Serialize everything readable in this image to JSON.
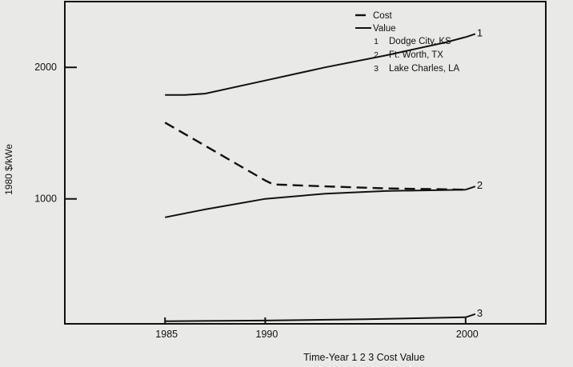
{
  "chart_data": {
    "type": "line",
    "title": "",
    "xlabel": "Time-Year   1   2   3   Cost Value",
    "ylabel": "1980 $/kWe",
    "xlim": [
      1980,
      2004
    ],
    "ylim": [
      50,
      2500
    ],
    "x_ticks": [
      1985,
      1990,
      2000
    ],
    "x_tick_labels": [
      "1985",
      "1990",
      "2000"
    ],
    "y_ticks": [
      1000,
      2000
    ],
    "y_tick_labels": [
      "1000",
      "2000"
    ],
    "grid": false,
    "legend": {
      "placement": "top-right",
      "style_entries": [
        {
          "label": "Cost",
          "style": "dashed"
        },
        {
          "label": "Value",
          "style": "solid"
        }
      ],
      "site_entries": [
        {
          "num": "1",
          "label": "Dodge City, KS"
        },
        {
          "num": "2",
          "label": "Ft. Worth, TX"
        },
        {
          "num": "3",
          "label": "Lake Charles, LA"
        }
      ]
    },
    "series": [
      {
        "site": "1",
        "style": "solid",
        "x": [
          1985,
          1986,
          1987,
          1990,
          1993,
          1996,
          1999,
          2000
        ],
        "y": [
          1790,
          1790,
          1800,
          1900,
          2000,
          2090,
          2190,
          2230
        ]
      },
      {
        "site": "2",
        "style": "solid",
        "x": [
          1985,
          1987,
          1990,
          1993,
          1996,
          2000
        ],
        "y": [
          860,
          920,
          1000,
          1040,
          1060,
          1070
        ]
      },
      {
        "site": "2",
        "style": "dashed",
        "x": [
          1985,
          1990,
          1990.4,
          1993,
          1996,
          2000
        ],
        "y": [
          1580,
          1140,
          1110,
          1095,
          1080,
          1070
        ]
      },
      {
        "site": "3",
        "style": "solid",
        "x": [
          1985,
          1990,
          1995,
          2000
        ],
        "y": [
          70,
          75,
          85,
          100
        ]
      }
    ],
    "end_labels": [
      {
        "site": "1",
        "text": "1"
      },
      {
        "site": "2",
        "text": "2"
      },
      {
        "site": "3",
        "text": "3"
      }
    ]
  }
}
